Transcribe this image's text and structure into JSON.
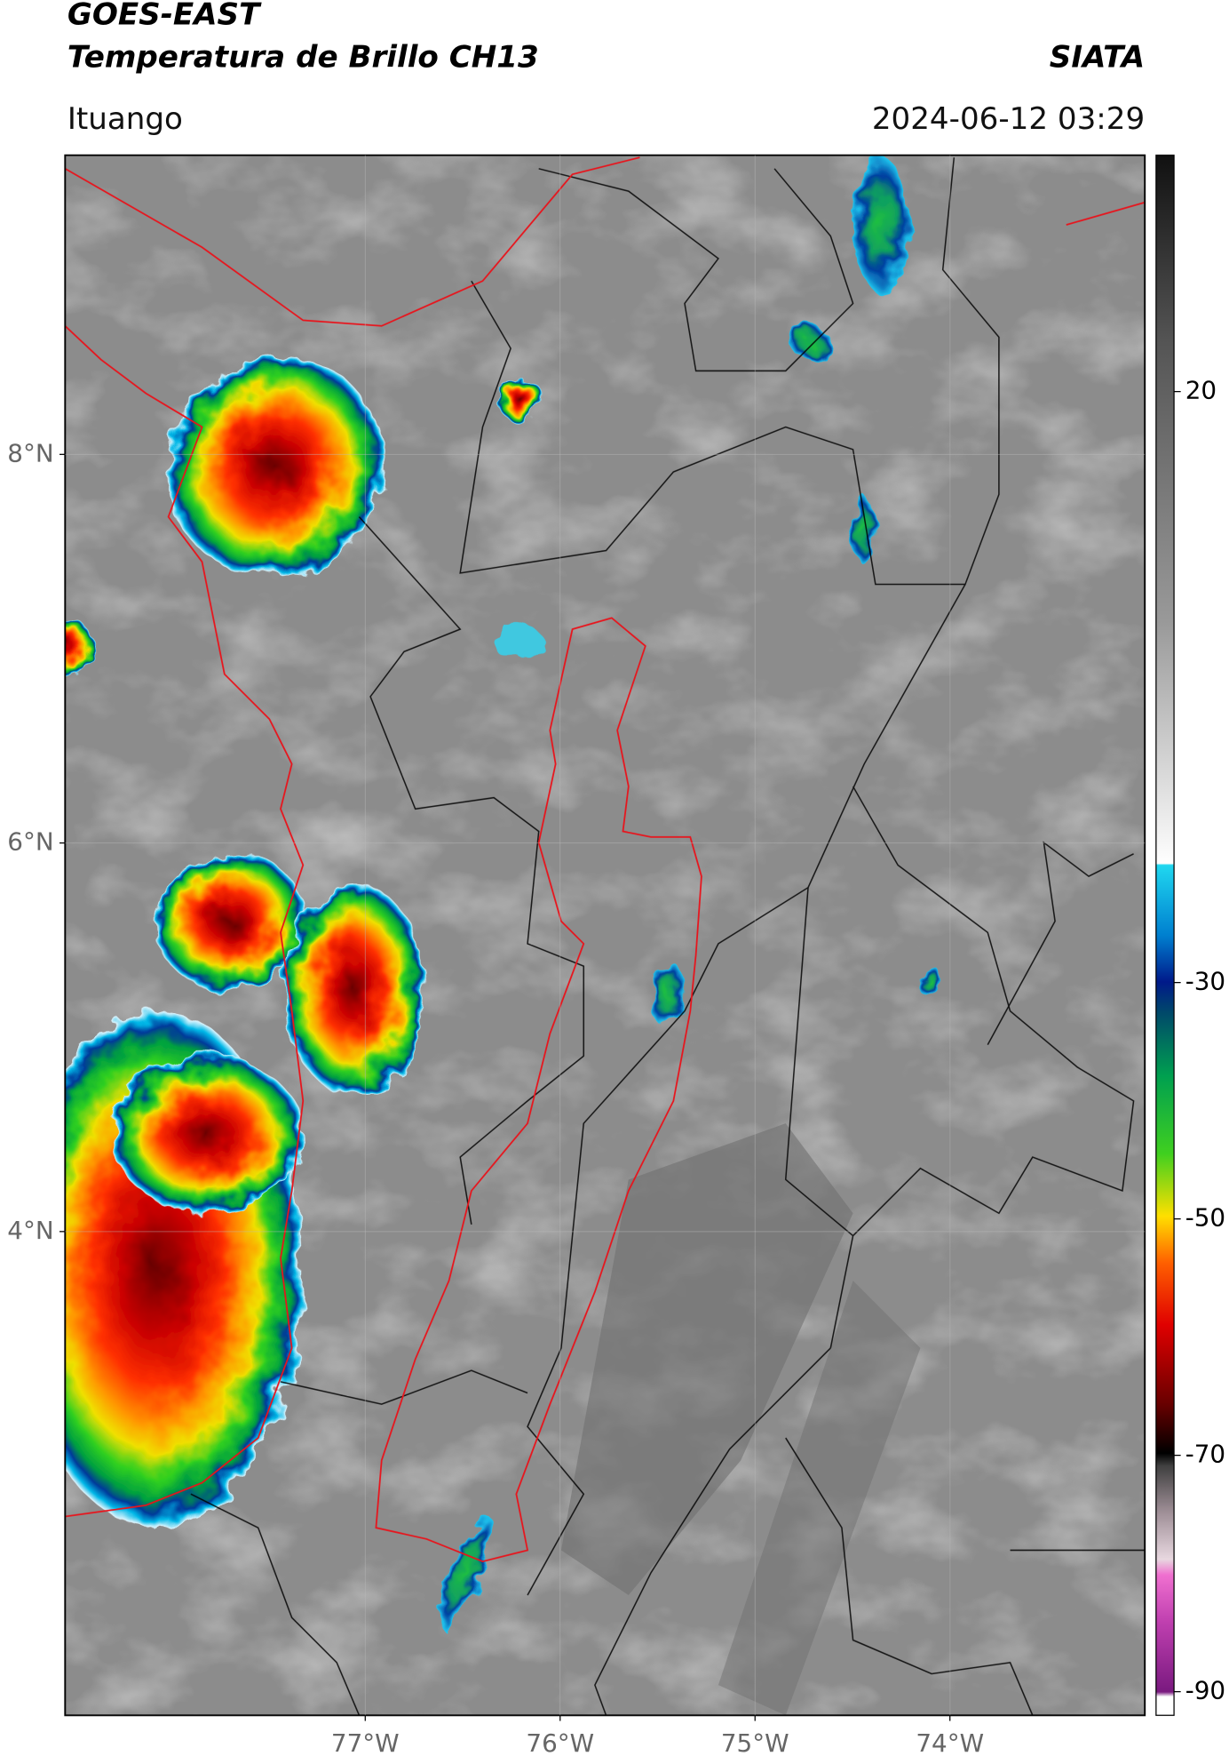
{
  "header": {
    "title": "GOES-EAST",
    "subtitle": "Temperatura de Brillo CH13",
    "source": "SIATA",
    "location": "Ituango",
    "datetime": "2024-06-12 03:29"
  },
  "map": {
    "latlim": [
      1.51,
      9.54
    ],
    "lonlim": [
      -78.54,
      -73.0
    ],
    "lat_ticks": [
      {
        "value": 8,
        "label": "8°N"
      },
      {
        "value": 6,
        "label": "6°N"
      },
      {
        "value": 4,
        "label": "4°N"
      }
    ],
    "lon_ticks": [
      {
        "value": -77,
        "label": "77°W"
      },
      {
        "value": -76,
        "label": "76°W"
      },
      {
        "value": -75,
        "label": "75°W"
      },
      {
        "value": -74,
        "label": "74°W"
      }
    ]
  },
  "colorbar": {
    "lim": [
      -92,
      40
    ],
    "ticks": [
      20,
      -30,
      -50,
      -70,
      -90
    ]
  }
}
